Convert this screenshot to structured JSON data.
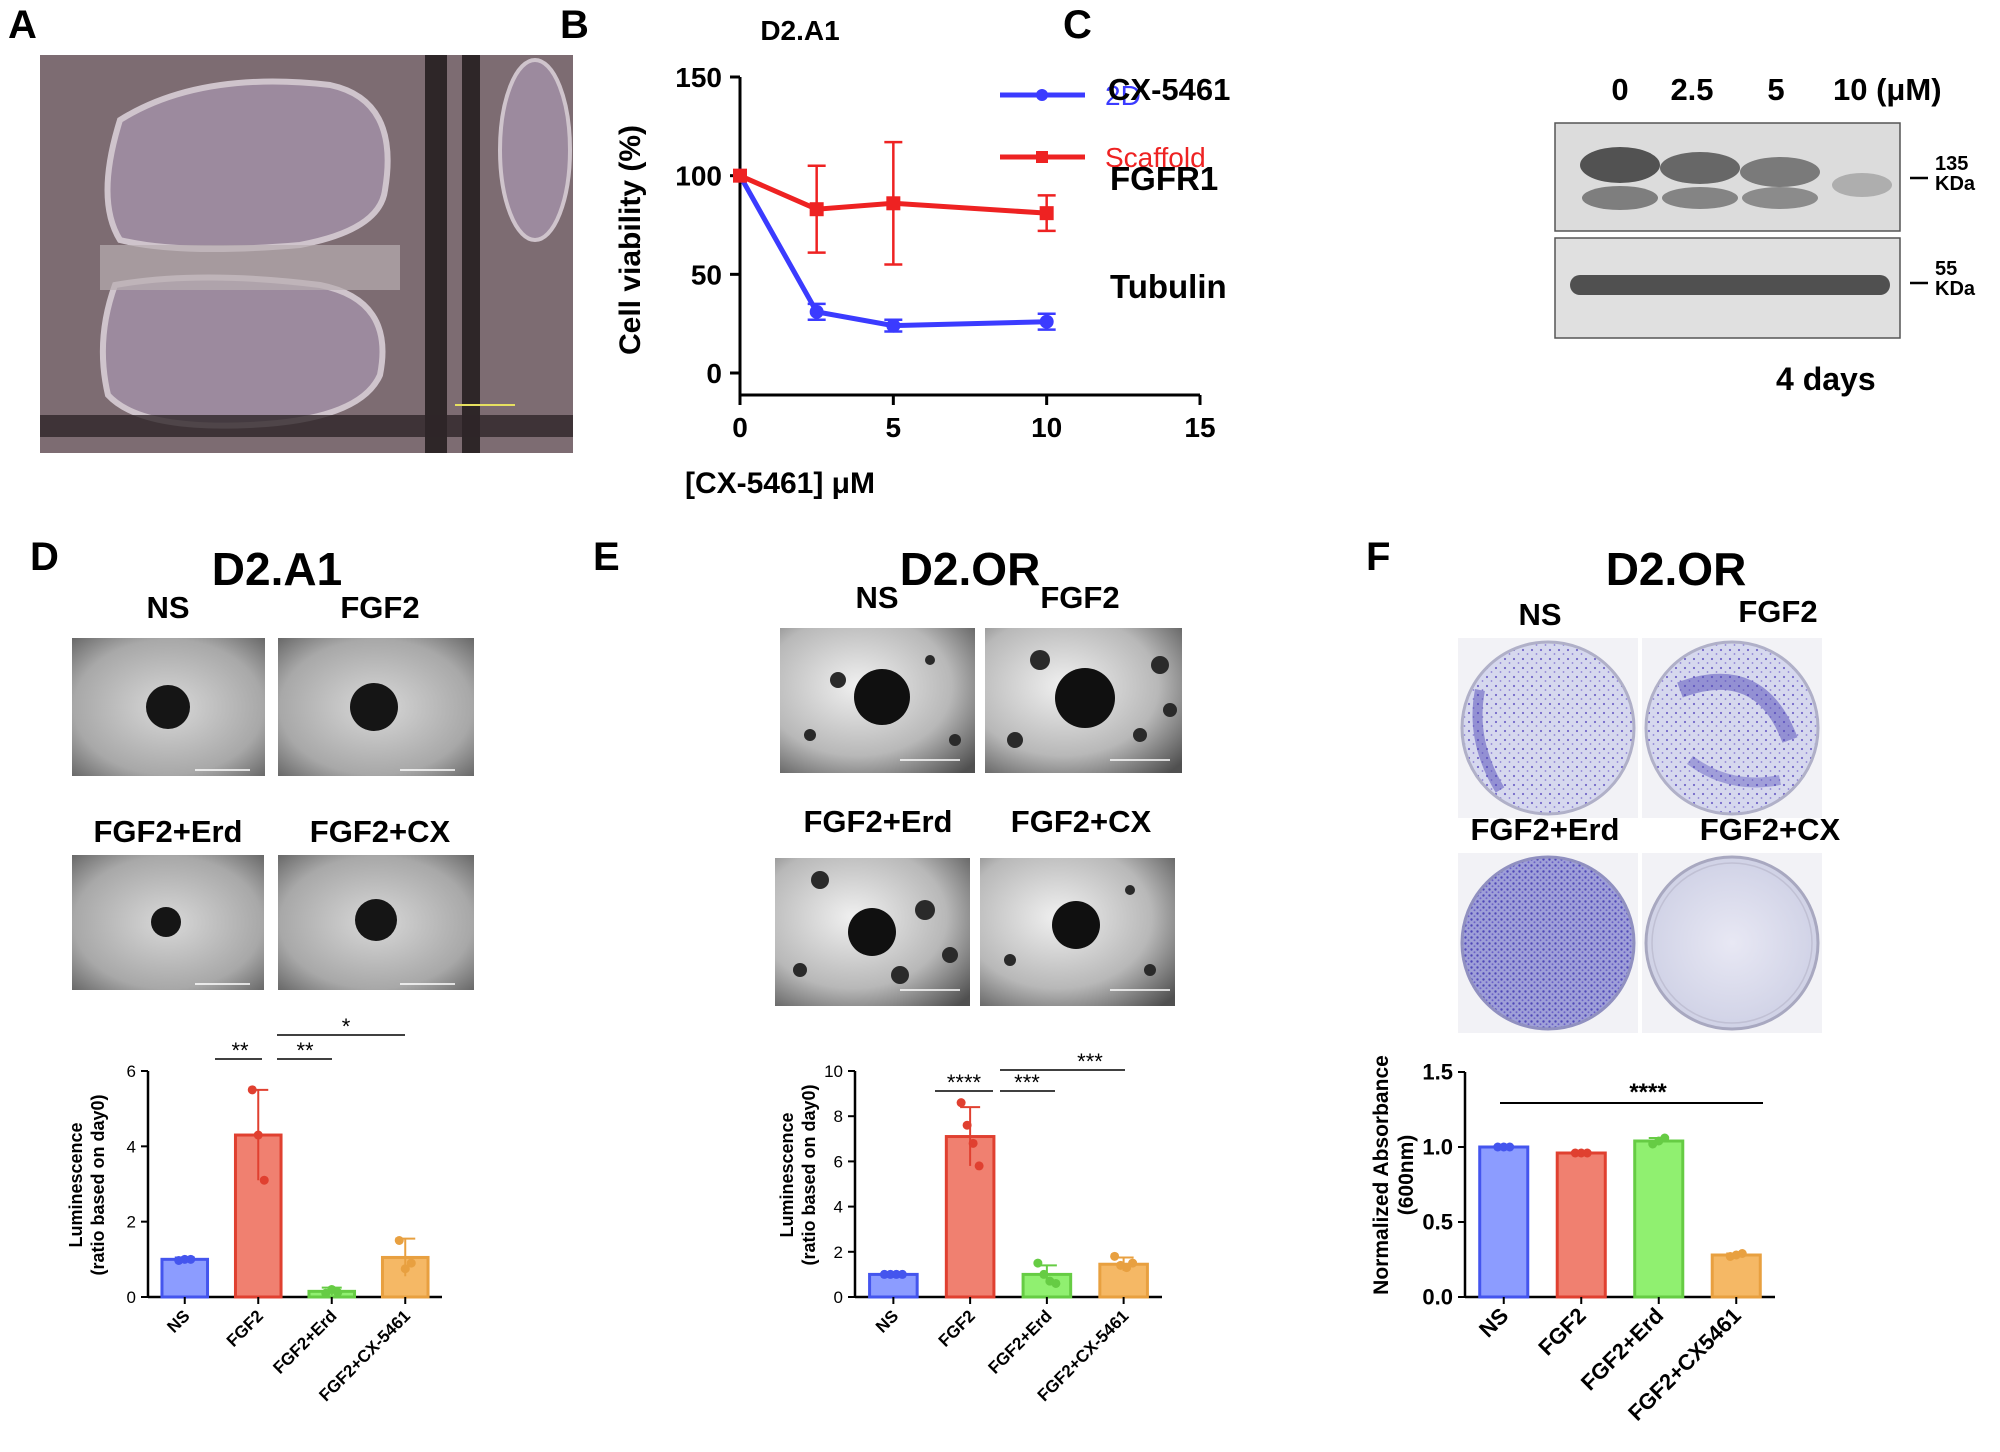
{
  "panel_letters": {
    "a": "A",
    "b": "B",
    "c": "C",
    "d": "D",
    "e": "E",
    "f": "F"
  },
  "colors": {
    "blue": "#3b3bff",
    "red": "#ee2222",
    "bar_blue": "#8c9cff",
    "bar_red": "#f08070",
    "bar_green": "#90f070",
    "bar_orange": "#f5b865",
    "stroke_blue": "#4455ee",
    "stroke_red": "#e04030",
    "stroke_green": "#66cc44",
    "stroke_orange": "#e8a040",
    "crystal_violet": "#6a5acd"
  },
  "panel_b": {
    "title": "D2.A1",
    "xlabel": "[CX-5461]  μM",
    "ylabel": "Cell viability (%)",
    "legend": [
      "2D",
      "Scaffold"
    ]
  },
  "panel_c": {
    "drug_label": "CX-5461",
    "lanes": [
      "0",
      "2.5",
      "5",
      "10 (μM)"
    ],
    "rows": [
      "FGFR1",
      "Tubulin"
    ],
    "markers": [
      {
        "num": "135",
        "unit": "KDa"
      },
      {
        "num": "55",
        "unit": "KDa"
      }
    ],
    "duration": "4 days"
  },
  "panel_d": {
    "title": "D2.A1",
    "images": [
      "NS",
      "FGF2",
      "FGF2+Erd",
      "FGF2+CX"
    ],
    "ylabel_1": "Luminescence",
    "ylabel_2": "(ratio based on day0)",
    "sig": [
      "**",
      "**",
      "*"
    ]
  },
  "panel_e": {
    "title": "D2.OR",
    "images": [
      "NS",
      "FGF2",
      "FGF2+Erd",
      "FGF2+CX"
    ],
    "ylabel_1": "Luminescence",
    "ylabel_2": "(ratio based on day0)",
    "sig": [
      "****",
      "***",
      "***"
    ]
  },
  "panel_f": {
    "title": "D2.OR",
    "images": [
      "NS",
      "FGF2",
      "FGF2+Erd",
      "FGF2+CX"
    ],
    "ylabel_1": "Normalized Absorbance",
    "ylabel_2": "(600nm)",
    "sig": [
      "****"
    ]
  },
  "chart_data": [
    {
      "id": "B",
      "type": "line",
      "title": "D2.A1",
      "xlabel": "[CX-5461]  μM",
      "ylabel": "Cell viability (%)",
      "xlim": [
        0,
        15
      ],
      "ylim": [
        0,
        150
      ],
      "xticks": [
        0,
        5,
        10,
        15
      ],
      "yticks": [
        0,
        50,
        100,
        150
      ],
      "legend_position": "top-right",
      "series": [
        {
          "name": "2D",
          "x": [
            0,
            2.5,
            5,
            10
          ],
          "y": [
            100,
            31,
            24,
            26
          ],
          "err": [
            0,
            4,
            3,
            4
          ],
          "color": "#3b3bff",
          "marker": "circle"
        },
        {
          "name": "Scaffold",
          "x": [
            0,
            2.5,
            5,
            10
          ],
          "y": [
            100,
            83,
            86,
            81
          ],
          "err": [
            0,
            22,
            31,
            9
          ],
          "color": "#ee2222",
          "marker": "square"
        }
      ]
    },
    {
      "id": "D",
      "type": "bar",
      "categories": [
        "NS",
        "FGF2",
        "FGF2+Erd",
        "FGF2+CX-5461"
      ],
      "values": [
        1.0,
        4.3,
        0.15,
        1.05
      ],
      "err": [
        0.05,
        1.2,
        0.1,
        0.5
      ],
      "ylim": [
        0,
        6
      ],
      "yticks": [
        0,
        2,
        4,
        6
      ],
      "points": [
        [
          0.97,
          1.0,
          1.0
        ],
        [
          5.5,
          4.3,
          3.1
        ],
        [
          0.1,
          0.2,
          0.12
        ],
        [
          1.5,
          0.75,
          0.9
        ]
      ],
      "ylabel": "Luminescence (ratio based on day0)"
    },
    {
      "id": "E",
      "type": "bar",
      "categories": [
        "NS",
        "FGF2",
        "FGF2+Erd",
        "FGF2+CX-5461"
      ],
      "values": [
        1.0,
        7.1,
        1.0,
        1.45
      ],
      "err": [
        0.05,
        1.3,
        0.4,
        0.3
      ],
      "ylim": [
        0,
        10
      ],
      "yticks": [
        0,
        2,
        4,
        6,
        8,
        10
      ],
      "points": [
        [
          1.0,
          1.0,
          1.0,
          1.0
        ],
        [
          8.6,
          7.6,
          6.8,
          5.8
        ],
        [
          1.5,
          1.0,
          0.7,
          0.6
        ],
        [
          1.8,
          1.4,
          1.3,
          1.5
        ]
      ],
      "ylabel": "Luminescence (ratio based on day0)"
    },
    {
      "id": "F",
      "type": "bar",
      "categories": [
        "NS",
        "FGF2",
        "FGF2+Erd",
        "FGF2+CX5461"
      ],
      "values": [
        1.0,
        0.96,
        1.04,
        0.28
      ],
      "err": [
        0.005,
        0.005,
        0.02,
        0.01
      ],
      "ylim": [
        0,
        1.5
      ],
      "yticks": [
        0.0,
        0.5,
        1.0,
        1.5
      ],
      "points": [
        [
          1.0,
          1.0,
          1.0
        ],
        [
          0.96,
          0.96,
          0.96
        ],
        [
          1.02,
          1.04,
          1.06
        ],
        [
          0.27,
          0.28,
          0.29
        ]
      ],
      "ylabel": "Normalized Absorbance (600nm)"
    }
  ]
}
